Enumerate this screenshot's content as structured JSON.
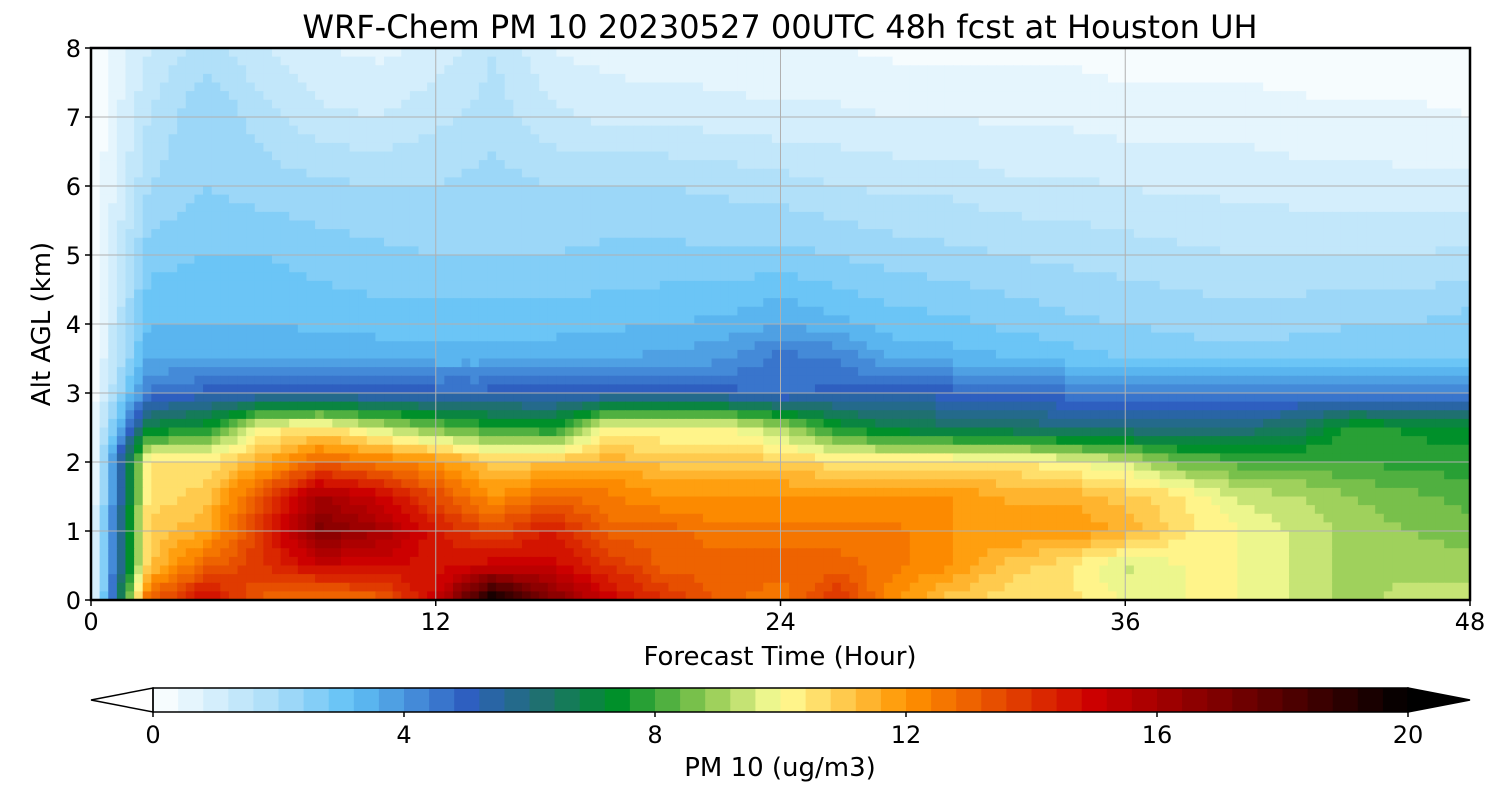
{
  "chart_data": {
    "type": "heatmap",
    "title": "WRF-Chem PM 10  20230527 00UTC 48h fcst at Houston UH",
    "xlabel": "Forecast Time (Hour)",
    "ylabel": "Alt AGL (km)",
    "xlim": [
      0,
      48
    ],
    "ylim": [
      0,
      8
    ],
    "x_ticks": [
      "0",
      "12",
      "24",
      "36",
      "48"
    ],
    "y_ticks": [
      "0",
      "1",
      "2",
      "3",
      "4",
      "5",
      "6",
      "7",
      "8"
    ],
    "grid": true,
    "colorbar": {
      "label": "PM 10  (ug/m3)",
      "range": [
        0,
        20
      ],
      "ticks": [
        "0",
        "4",
        "8",
        "12",
        "16",
        "20"
      ],
      "extend": "both",
      "colors": [
        {
          "value": 0,
          "color": "#ffffff"
        },
        {
          "value": 2,
          "color": "#a8dcf8"
        },
        {
          "value": 3.2,
          "color": "#5fc0f5"
        },
        {
          "value": 5,
          "color": "#2e5fc0"
        },
        {
          "value": 6.2,
          "color": "#1f7070"
        },
        {
          "value": 7.4,
          "color": "#00902a"
        },
        {
          "value": 8.8,
          "color": "#8cc850"
        },
        {
          "value": 10,
          "color": "#ffff99"
        },
        {
          "value": 12,
          "color": "#ff9400"
        },
        {
          "value": 15,
          "color": "#cc0000"
        },
        {
          "value": 17.5,
          "color": "#6a0000"
        },
        {
          "value": 20,
          "color": "#000000"
        }
      ]
    },
    "x": [
      0,
      2,
      4,
      6,
      8,
      10,
      12,
      14,
      16,
      18,
      20,
      22,
      24,
      26,
      28,
      30,
      32,
      34,
      36,
      38,
      40,
      42,
      44,
      46,
      48
    ],
    "y": [
      0,
      0.5,
      1,
      1.5,
      2,
      2.5,
      3,
      3.5,
      4,
      5,
      6,
      7,
      8
    ],
    "values": [
      [
        0,
        13,
        15,
        13,
        12.5,
        13,
        15,
        20,
        17,
        15,
        14,
        13,
        12.5,
        14,
        12,
        11,
        10.5,
        10.5,
        10,
        10,
        10,
        9.5,
        9,
        9.5,
        9.5
      ],
      [
        0,
        11,
        13,
        14,
        15,
        15,
        14.5,
        15,
        15,
        14,
        13,
        13,
        13,
        13,
        12.5,
        12,
        11,
        10.5,
        9.5,
        10,
        10,
        9.5,
        9,
        9,
        9
      ],
      [
        0,
        11,
        11.5,
        14,
        17,
        16,
        14.5,
        13.5,
        14.5,
        13,
        13,
        12.5,
        12.5,
        12.5,
        12.5,
        12,
        12,
        12,
        11.5,
        10.5,
        10,
        9.5,
        9,
        8.8,
        8.6
      ],
      [
        0,
        10.5,
        11,
        13.5,
        16,
        15,
        13.5,
        12,
        13,
        12.5,
        12,
        12,
        12,
        12,
        12,
        12,
        11.5,
        11.5,
        11,
        10.5,
        9.5,
        9.2,
        8.8,
        8.5,
        8.2
      ],
      [
        0,
        10.5,
        10.5,
        11.5,
        13,
        12.5,
        12,
        11,
        11,
        11.5,
        11,
        11,
        11,
        10.5,
        10.5,
        10.5,
        10.5,
        10,
        9.5,
        8.5,
        8.2,
        8.2,
        8,
        7.8,
        7.8
      ],
      [
        0,
        7,
        7.5,
        10,
        10.5,
        9.5,
        8.5,
        7.8,
        7.5,
        10,
        10,
        10,
        9.2,
        7.5,
        6.8,
        6.5,
        6.3,
        6,
        6,
        5.8,
        6,
        6.5,
        7.8,
        7.5,
        7.4
      ],
      [
        0,
        4.5,
        5,
        5,
        5,
        5,
        5,
        5,
        5,
        5,
        5,
        5,
        4.6,
        5,
        5,
        5,
        5,
        4.6,
        4.4,
        4.4,
        4.4,
        4.4,
        4.2,
        4.2,
        4.2
      ],
      [
        0,
        3.6,
        3.6,
        3.6,
        3.6,
        3.5,
        3.4,
        3.4,
        3.5,
        3.6,
        3.7,
        3.9,
        4.6,
        4.4,
        3.5,
        3.4,
        3.2,
        3,
        2.8,
        2.6,
        2.6,
        2.6,
        2.6,
        2.7,
        2.8
      ],
      [
        0,
        3.2,
        3.2,
        3.2,
        3.1,
        3,
        3,
        3,
        3,
        3.1,
        3.2,
        3.3,
        3.6,
        3.3,
        3,
        2.9,
        2.7,
        2.5,
        2.4,
        2.3,
        2.2,
        2.3,
        2.4,
        2.4,
        2.6
      ],
      [
        0,
        2.6,
        2.8,
        2.8,
        2.6,
        2.5,
        2.4,
        2.4,
        2.4,
        2.5,
        2.5,
        2.5,
        2.5,
        2.4,
        2.2,
        2.1,
        2,
        1.9,
        1.8,
        1.7,
        1.6,
        1.6,
        1.6,
        1.6,
        1.7
      ],
      [
        0,
        2,
        2.4,
        2.2,
        2.1,
        2,
        2,
        2.2,
        2,
        2,
        2,
        1.9,
        1.8,
        1.6,
        1.5,
        1.5,
        1.3,
        1.3,
        1.2,
        1.1,
        1.1,
        1,
        1,
        0.9,
        0.9
      ],
      [
        0,
        1.6,
        2.4,
        1.8,
        1.3,
        1.2,
        1.5,
        1.8,
        1.3,
        1.1,
        1.1,
        1,
        0.9,
        0.9,
        0.8,
        0.8,
        0.7,
        0.7,
        0.6,
        0.6,
        0.6,
        0.5,
        0.5,
        0.5,
        0.4
      ],
      [
        0,
        1.2,
        1.8,
        1.2,
        0.8,
        0.7,
        0.9,
        1.6,
        0.8,
        0.6,
        0.5,
        0.5,
        0.4,
        0.4,
        0.3,
        0.3,
        0.3,
        0.3,
        0.2,
        0.2,
        0.2,
        0.2,
        0.1,
        0.1,
        0.1
      ]
    ]
  }
}
